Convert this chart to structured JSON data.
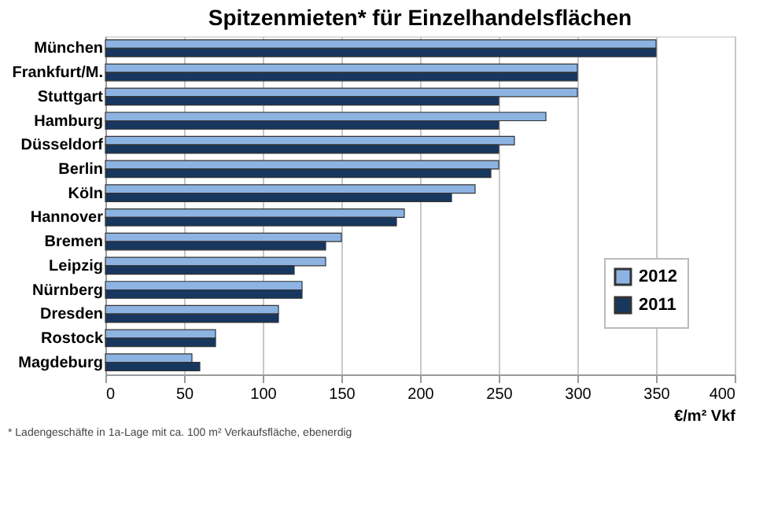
{
  "chart_data": {
    "type": "bar",
    "orientation": "horizontal",
    "title": "Spitzenmieten* für Einzelhandelsflächen",
    "categories": [
      "München",
      "Frankfurt/M.",
      "Stuttgart",
      "Hamburg",
      "Düsseldorf",
      "Berlin",
      "Köln",
      "Hannover",
      "Bremen",
      "Leipzig",
      "Nürnberg",
      "Dresden",
      "Rostock",
      "Magdeburg"
    ],
    "series": [
      {
        "name": "2012",
        "color": "#8db3e2",
        "values": [
          350,
          300,
          300,
          280,
          260,
          250,
          235,
          190,
          150,
          140,
          125,
          110,
          70,
          55
        ]
      },
      {
        "name": "2011",
        "color": "#17375e",
        "values": [
          350,
          300,
          250,
          250,
          250,
          245,
          220,
          185,
          140,
          120,
          125,
          110,
          70,
          60
        ]
      }
    ],
    "xlabel": "€/m² Vkf",
    "xlim": [
      0,
      400
    ],
    "xticks": [
      0,
      50,
      100,
      150,
      200,
      250,
      300,
      350,
      400
    ],
    "grid": "x",
    "legend": "bottom right",
    "annotations": [
      "* Ladengeschäfte in 1a-Lage mit ca. 100 m² Verkaufsfläche, ebenerdig"
    ]
  }
}
